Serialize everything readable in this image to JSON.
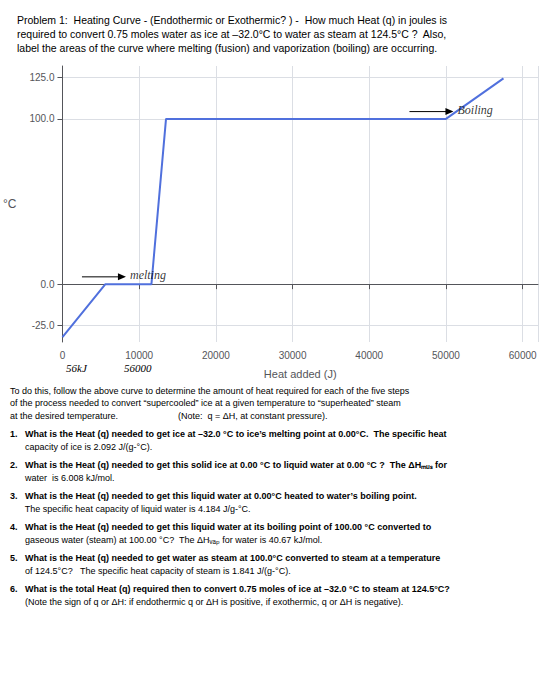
{
  "chart_data": {
    "type": "line",
    "title": [
      "Problem 1:  Heating Curve - (Endothermic or Exothermic? ) -  How much Heat (q) in joules is",
      "required to convert 0.75 moles water as ice at –32.0°C to water as steam at 124.5°C ?  Also,",
      "label the areas of the curve where melting (fusion) and vaporization (boiling) are occurring."
    ],
    "x": [
      0,
      5600,
      11600,
      13500,
      50000,
      57500
    ],
    "values": [
      -32,
      0,
      0,
      100,
      100,
      124.5
    ],
    "xlim": [
      0,
      62000
    ],
    "ylim": [
      -35,
      132
    ],
    "xticks": [
      0,
      10000,
      20000,
      30000,
      40000,
      50000,
      60000
    ],
    "yticks": [
      {
        "value": -25.0,
        "label": "-25.0"
      },
      {
        "value": 0.0,
        "label": "0.0"
      },
      {
        "value": 100.0,
        "label": "100.0"
      },
      {
        "value": 125.0,
        "label": "125.0"
      }
    ],
    "xlabel": "Heat added (J)",
    "ylabel": "°C",
    "grid": true,
    "annotations": [
      {
        "text": "melting",
        "x": 8800,
        "y": 2.0
      },
      {
        "text": "Boiling",
        "x": 51500,
        "y": 102.0
      }
    ],
    "notes": [
      "56kJ",
      "56000"
    ],
    "text": [
      [
        "To do this, follow the above curve to determine the amount of heat required for each of the five steps",
        "of the process needed to convert “supercooled” ice at a given temperature to “superheated” steam",
        "at the desired temperature.                        (Note:  q = ΔH, at constant pressure)."
      ],
      [
        "1.   What is the Heat (q) needed to get ice at –32.0 °C to ice’s melting point at 0.00°C.  The specific heat",
        "      capacity of ice is 2.092 J/(g-°C)."
      ],
      [
        "2.   What is the Heat (q) needed to get this solid ice at 0.00 °C to liquid water at 0.00 °C ?  The ΔHₘᵤₛ for",
        "      water  is 6.008 kJ/mol."
      ],
      [
        "3.   What is the Heat (q) needed to get this liquid water at 0.00°C heated to water’s boiling point.",
        "      The specific heat capacity of liquid water is 4.184 J/g-°C."
      ],
      [
        "4.   What is the Heat (q) needed to get this liquid water at its boiling point of 100.00 °C converted to",
        "      gaseous water (steam) at 100.00 °C?  The ΔHᵥₐₚ for water is 40.67 kJ/mol."
      ],
      [
        "5.   What is the Heat (q) needed to get water as steam at 100.0°C converted to steam at a temperature",
        "      of 124.5°C?   The specific heat capacity of steam is 1.841 J/(g-°C)."
      ],
      [
        "6.   What is the total Heat (q) required then to convert 0.75 moles of ice at –32.0 °C to steam at 124.5°C?",
        "      (Note the sign of q or ΔH: if endothermic q or ΔH is positive, if exothermic, q or ΔH is negative)."
      ]
    ]
  }
}
